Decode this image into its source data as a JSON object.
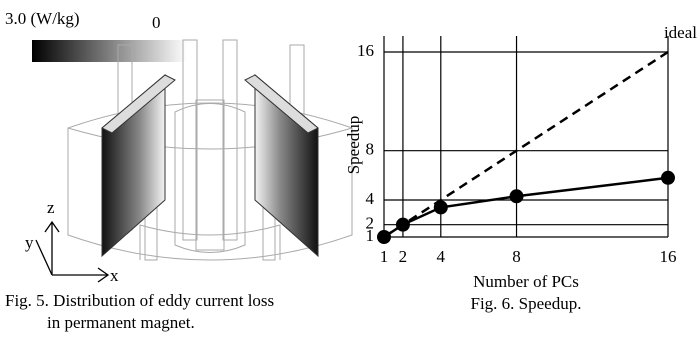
{
  "figure5": {
    "colorbar_max": "3.0 (W/kg)",
    "colorbar_min": "0",
    "axis_z": "z",
    "axis_y": "y",
    "axis_x": "x",
    "caption_lines": [
      "Fig. 5.  Distribution of eddy current loss",
      "in permanent magnet."
    ]
  },
  "chart_data": {
    "type": "line",
    "xlabel": "Number of PCs",
    "ylabel": "Speedup",
    "caption": "Fig. 6. Speedup.",
    "x": [
      1,
      2,
      4,
      8,
      16
    ],
    "series": [
      {
        "name": "ideal",
        "color": "#000000",
        "dashed": true,
        "markers": false,
        "values": [
          1,
          2,
          4,
          8,
          16
        ]
      },
      {
        "color": "#000000",
        "dashed": false,
        "markers": true,
        "values": [
          1,
          2,
          3.4,
          4.3,
          5.8
        ]
      }
    ],
    "xlim": [
      1,
      16
    ],
    "xticks": [
      1,
      2,
      4,
      8,
      16
    ],
    "ylim": [
      1,
      16
    ],
    "yticks": [
      1,
      2,
      4,
      8,
      16
    ],
    "grid": true
  }
}
